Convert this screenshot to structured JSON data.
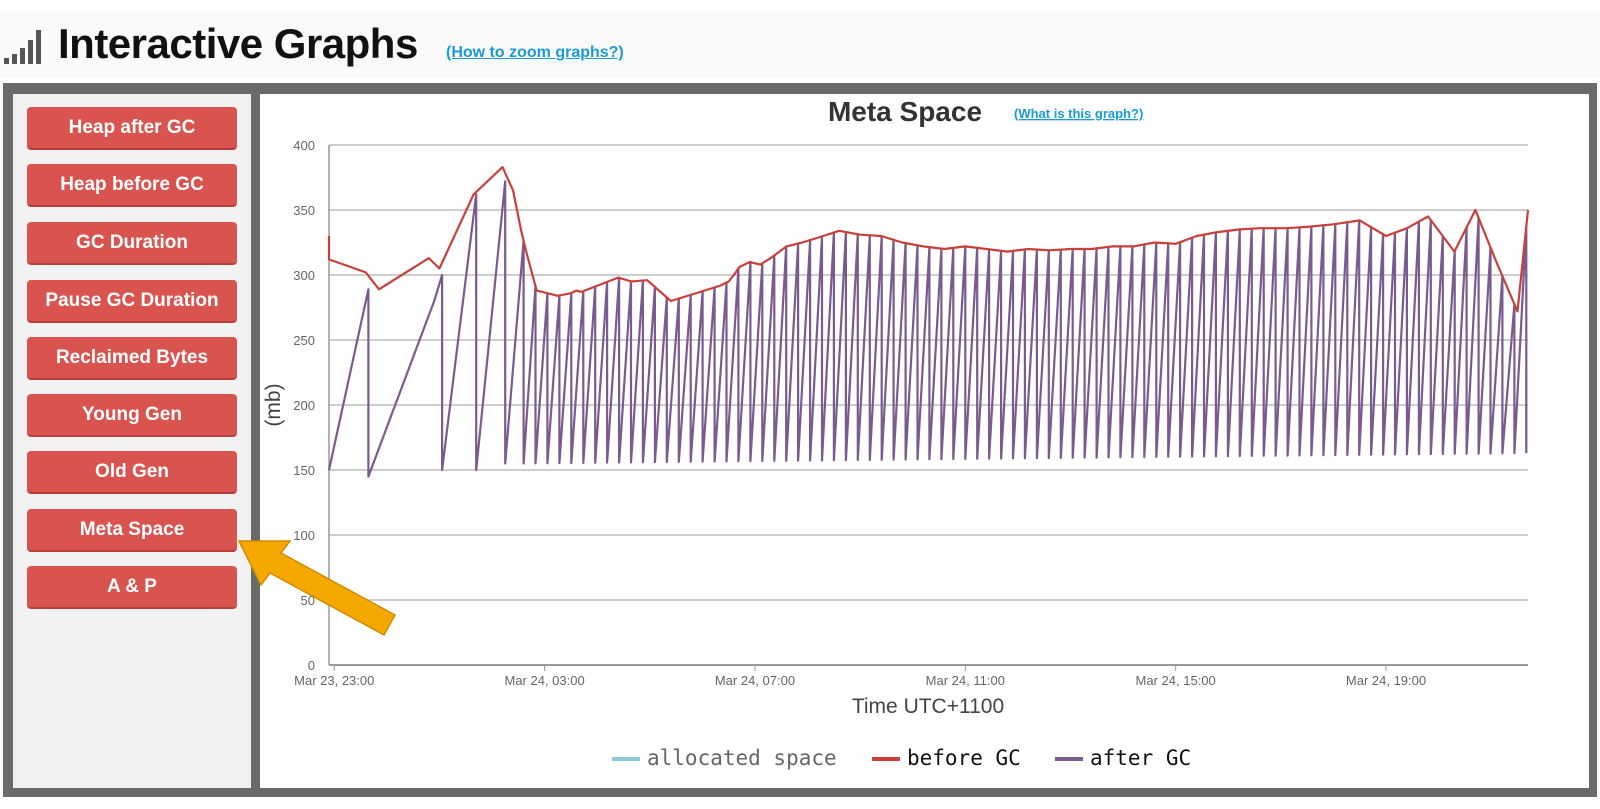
{
  "header": {
    "title": "Interactive Graphs",
    "help_link": "(How to zoom graphs?)"
  },
  "sidebar": {
    "buttons": [
      {
        "label": "Heap after GC"
      },
      {
        "label": "Heap before GC"
      },
      {
        "label": "GC Duration"
      },
      {
        "label": "Pause GC Duration"
      },
      {
        "label": "Reclaimed Bytes"
      },
      {
        "label": "Young Gen"
      },
      {
        "label": "Old Gen"
      },
      {
        "label": "Meta Space"
      },
      {
        "label": "A & P"
      }
    ],
    "selected": "Meta Space"
  },
  "colors": {
    "button_bg": "#d9534f",
    "allocated": "#8ecbd8",
    "before_gc": "#c9403a",
    "after_gc": "#7b5a8e",
    "arrow": "#f5a800"
  },
  "chart_data": {
    "type": "line",
    "title": "Meta Space",
    "title_link": "(What is this graph?)",
    "xlabel": "Time UTC+1100",
    "ylabel": "(mb)",
    "ylim": [
      0,
      400
    ],
    "yticks": [
      0,
      50,
      100,
      150,
      200,
      250,
      300,
      350,
      400
    ],
    "xlim": [
      -0.1,
      22.7
    ],
    "xticks": [
      {
        "x": 0,
        "label": "Mar 23, 23:00"
      },
      {
        "x": 4,
        "label": "Mar 24, 03:00"
      },
      {
        "x": 8,
        "label": "Mar 24, 07:00"
      },
      {
        "x": 12,
        "label": "Mar 24, 11:00"
      },
      {
        "x": 16,
        "label": "Mar 24, 15:00"
      },
      {
        "x": 20,
        "label": "Mar 24, 19:00"
      }
    ],
    "x_unit": "hours since Mar 23, 23:00",
    "grid": true,
    "legend_position": "bottom",
    "series": [
      {
        "name": "allocated space",
        "x": [],
        "y": []
      },
      {
        "name": "before GC",
        "x": [
          -0.1,
          -0.1,
          0.6,
          0.85,
          1.8,
          2.0,
          2.65,
          3.2,
          3.4,
          3.55,
          3.65,
          3.85,
          4.25,
          4.5,
          4.6,
          4.7,
          5.4,
          5.65,
          5.95,
          6.4,
          6.8,
          7.2,
          7.35,
          7.5,
          7.6,
          7.7,
          7.9,
          8.1,
          8.3,
          8.6,
          8.9,
          9.3,
          9.6,
          10.0,
          10.4,
          10.8,
          11.2,
          11.6,
          12.0,
          12.4,
          12.8,
          13.2,
          13.6,
          14.0,
          14.4,
          14.8,
          15.2,
          15.6,
          16.0,
          16.4,
          16.8,
          17.2,
          17.6,
          18.1,
          18.5,
          19.0,
          19.5,
          20.0,
          20.4,
          20.8,
          21.3,
          21.7,
          22.1,
          22.5,
          22.7
        ],
        "y": [
          330,
          312,
          302,
          289,
          313,
          305,
          362,
          383,
          365,
          335,
          318,
          288,
          284,
          286,
          288,
          287,
          298,
          295,
          296,
          280,
          285,
          290,
          292,
          295,
          300,
          306,
          310,
          308,
          313,
          322,
          325,
          330,
          334,
          331,
          330,
          325,
          322,
          320,
          322,
          320,
          318,
          320,
          319,
          320,
          320,
          322,
          322,
          325,
          324,
          330,
          333,
          335,
          336,
          336,
          337,
          339,
          342,
          330,
          336,
          345,
          318,
          350,
          310,
          272,
          350
        ]
      },
      {
        "name": "after GC",
        "x": [
          -0.1,
          0.65,
          0.65,
          1.9,
          2.05,
          2.05,
          2.7,
          2.7,
          3.25,
          3.25
        ],
        "y": [
          150,
          289,
          145,
          280,
          300,
          150,
          362,
          150,
          372,
          155
        ],
        "saw_start": 3.6,
        "saw_step": 0.227,
        "saw_end": 22.7,
        "saw_low_start": 155,
        "saw_low_end": 163
      }
    ]
  }
}
